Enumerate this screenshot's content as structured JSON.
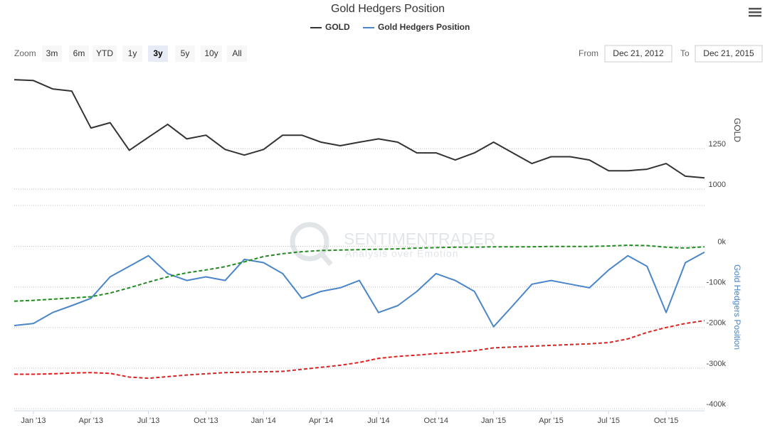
{
  "title": "Gold Hedgers Position",
  "zoom": {
    "label": "Zoom",
    "buttons": [
      "3m",
      "6m",
      "YTD",
      "1y",
      "3y",
      "5y",
      "10y",
      "All"
    ],
    "selected": 4
  },
  "range": {
    "from_label": "From",
    "from": "Dec 21, 2012",
    "to_label": "To",
    "to": "Dec 21, 2015"
  },
  "watermark": {
    "name": "SENTIMENTRADER",
    "tagline": "Analysis over Emotion"
  },
  "chart_data": {
    "type": "line",
    "x": [
      "2012-12",
      "2013-01",
      "2013-02",
      "2013-03",
      "2013-04",
      "2013-05",
      "2013-06",
      "2013-07",
      "2013-08",
      "2013-09",
      "2013-10",
      "2013-11",
      "2013-12",
      "2014-01",
      "2014-02",
      "2014-03",
      "2014-04",
      "2014-05",
      "2014-06",
      "2014-07",
      "2014-08",
      "2014-09",
      "2014-10",
      "2014-11",
      "2014-12",
      "2015-01",
      "2015-02",
      "2015-03",
      "2015-04",
      "2015-05",
      "2015-06",
      "2015-07",
      "2015-08",
      "2015-09",
      "2015-10",
      "2015-11",
      "2015-12"
    ],
    "xlim": [
      "2012-12",
      "2015-12"
    ],
    "xticks": [
      {
        "value": "2013-01",
        "label": "Jan '13"
      },
      {
        "value": "2013-04",
        "label": "Apr '13"
      },
      {
        "value": "2013-07",
        "label": "Jul '13"
      },
      {
        "value": "2013-10",
        "label": "Oct '13"
      },
      {
        "value": "2014-01",
        "label": "Jan '14"
      },
      {
        "value": "2014-04",
        "label": "Apr '14"
      },
      {
        "value": "2014-07",
        "label": "Jul '14"
      },
      {
        "value": "2014-10",
        "label": "Oct '14"
      },
      {
        "value": "2015-01",
        "label": "Jan '15"
      },
      {
        "value": "2015-04",
        "label": "Apr '15"
      },
      {
        "value": "2015-07",
        "label": "Jul '15"
      },
      {
        "value": "2015-10",
        "label": "Oct '15"
      }
    ],
    "ylim": [
      900,
      1750
    ],
    "yticks": [
      1000,
      1250
    ],
    "ylabel": "GOLD",
    "y2lim": [
      -400000,
      80000
    ],
    "y2ticks": [
      {
        "value": 0,
        "label": "0k"
      },
      {
        "value": -100000,
        "label": "-100k"
      },
      {
        "value": -200000,
        "label": "-200k"
      },
      {
        "value": -300000,
        "label": "-300k"
      },
      {
        "value": -400000,
        "label": "-400k"
      }
    ],
    "y2label": "Gold Hedgers Position",
    "grid": true,
    "series": [
      {
        "name": "GOLD",
        "color": "#333333",
        "values": [
          1675,
          1670,
          1618,
          1605,
          1377,
          1410,
          1240,
          1320,
          1400,
          1310,
          1333,
          1245,
          1210,
          1245,
          1333,
          1333,
          1290,
          1268,
          1290,
          1310,
          1290,
          1224,
          1224,
          1180,
          1224,
          1290,
          1224,
          1158,
          1200,
          1200,
          1180,
          1114,
          1114,
          1123,
          1158,
          1080,
          1070
        ]
      },
      {
        "name": "Gold Hedgers Position",
        "color": "#4a86c8",
        "axis": "y2",
        "values": [
          -195000,
          -190000,
          -163000,
          -146000,
          -128000,
          -75000,
          -49000,
          -23000,
          -67000,
          -84000,
          -75000,
          -84000,
          -32000,
          -40000,
          -67000,
          -128000,
          -111000,
          -102000,
          -84000,
          -163000,
          -146000,
          -111000,
          -67000,
          -84000,
          -111000,
          -198000,
          -146000,
          -93000,
          -84000,
          -93000,
          -102000,
          -58000,
          -23000,
          -49000,
          -163000,
          -40000,
          -14000
        ]
      },
      {
        "color": "#228b22",
        "axis": "y2",
        "dashed": true,
        "values": [
          -135000,
          -133000,
          -130000,
          -127000,
          -124000,
          -115000,
          -102000,
          -88000,
          -75000,
          -65000,
          -58000,
          -50000,
          -38000,
          -25000,
          -18000,
          -13000,
          -10000,
          -9000,
          -8000,
          -7000,
          -6000,
          -4000,
          -3000,
          -2000,
          -2000,
          -1000,
          -1000,
          -1000,
          0,
          0,
          0,
          1000,
          3000,
          2000,
          -2000,
          -4000,
          -1000
        ]
      },
      {
        "color": "#dd2222",
        "axis": "y2",
        "dashed": true,
        "values": [
          -315000,
          -315000,
          -314000,
          -312000,
          -311000,
          -313000,
          -322000,
          -325000,
          -321000,
          -317000,
          -314000,
          -311000,
          -310000,
          -309000,
          -308000,
          -303000,
          -298000,
          -293000,
          -286000,
          -276000,
          -271000,
          -268000,
          -264000,
          -261000,
          -257000,
          -250000,
          -248000,
          -246000,
          -244000,
          -242000,
          -240000,
          -237000,
          -228000,
          -212000,
          -200000,
          -190000,
          -183000
        ]
      }
    ]
  }
}
